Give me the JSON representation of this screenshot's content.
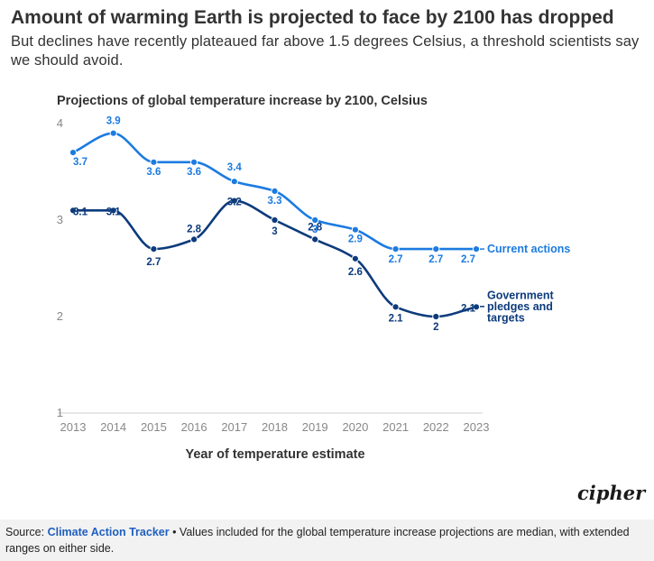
{
  "header": {
    "title": "Amount of warming Earth is projected to face by 2100 has dropped",
    "subtitle": "But declines have recently plateaued far above 1.5 degrees Celsius, a threshold scientists say we should avoid."
  },
  "brand": "cipher",
  "footer": {
    "source_prefix": "Source:",
    "source_name": "Climate Action Tracker",
    "note": "• Values included for the global temperature increase projections are median, with extended ranges on either side."
  },
  "colors": {
    "current_actions": "#1c7be0",
    "government_pledges": "#0c3b7c",
    "axis_text": "#888888",
    "baseline": "#cccccc"
  },
  "chart_data": {
    "type": "line",
    "title": "Projections of global temperature increase by 2100, Celsius",
    "xlabel": "Year of temperature estimate",
    "ylabel": "",
    "x": [
      2013,
      2014,
      2015,
      2016,
      2017,
      2018,
      2019,
      2020,
      2021,
      2022,
      2023
    ],
    "ylim": [
      1,
      4
    ],
    "yticks": [
      1,
      2,
      3,
      4
    ],
    "grid": false,
    "series": [
      {
        "name": "Current actions",
        "color": "#1c7be0",
        "values": [
          3.7,
          3.9,
          3.6,
          3.6,
          3.4,
          3.3,
          3.0,
          2.9,
          2.7,
          2.7,
          2.7
        ],
        "labels": [
          "3.7",
          "3.9",
          "3.6",
          "3.6",
          "3.4",
          "3.3",
          "3",
          "2.9",
          "2.7",
          "2.7",
          "2.7"
        ]
      },
      {
        "name": "Government pledges and targets",
        "name_lines": [
          "Government",
          "pledges and",
          "targets"
        ],
        "color": "#0c3b7c",
        "values": [
          3.1,
          3.1,
          2.7,
          2.8,
          3.2,
          3.0,
          2.8,
          2.6,
          2.1,
          2.0,
          2.1
        ],
        "labels": [
          "3.1",
          "3.1",
          "2.7",
          "2.8",
          "3.2",
          "3",
          "2.8",
          "2.6",
          "2.1",
          "2",
          "2.1"
        ]
      }
    ]
  }
}
